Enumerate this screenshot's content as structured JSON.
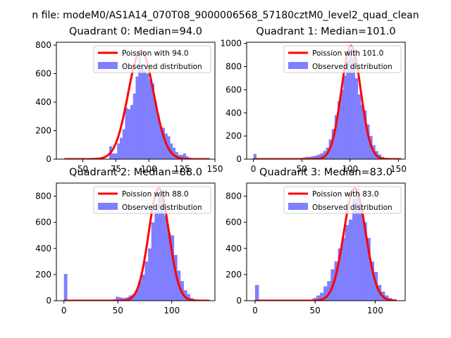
{
  "suptitle": "n file: modeM0/AS1A14_070T08_9000006568_57180cztM0_level2_quad_clean",
  "colors": {
    "hist": "#7f7fff",
    "fit": "#ff0000",
    "axis": "#000000"
  },
  "chart_data": [
    {
      "type": "histogram",
      "title": "Quadrant 0: Median=94.0",
      "xlim": [
        30,
        150
      ],
      "ylim": [
        0,
        820
      ],
      "xticks": [
        50,
        75,
        100,
        125,
        150
      ],
      "yticks": [
        0,
        200,
        400,
        600,
        800
      ],
      "legend": [
        "Poission with 94.0",
        "Observed distribution"
      ],
      "legend_location": "top-right",
      "bins": {
        "x": [
          36,
          38,
          40,
          42,
          44,
          46,
          48,
          50,
          52,
          54,
          56,
          58,
          60,
          62,
          64,
          66,
          68,
          70,
          72,
          74,
          76,
          78,
          80,
          82,
          84,
          86,
          88,
          90,
          92,
          94,
          96,
          98,
          100,
          102,
          104,
          106,
          108,
          110,
          112,
          114,
          116,
          118,
          120,
          122,
          124,
          126,
          128,
          130,
          132,
          134,
          136,
          138,
          140,
          142,
          144,
          146
        ],
        "y": [
          0,
          0,
          0,
          0,
          0,
          0,
          0,
          0,
          0,
          0,
          0,
          0,
          0,
          0,
          0,
          0,
          0,
          90,
          40,
          40,
          110,
          150,
          210,
          360,
          350,
          380,
          460,
          580,
          750,
          640,
          620,
          600,
          560,
          530,
          400,
          310,
          230,
          220,
          180,
          160,
          110,
          80,
          50,
          30,
          30,
          40,
          20,
          10,
          5,
          0,
          0,
          0,
          0,
          0,
          0,
          0
        ]
      },
      "fit": {
        "mean": 94.0,
        "amplitude": 760,
        "x_range": [
          36,
          146
        ]
      }
    },
    {
      "type": "histogram",
      "title": "Quadrant 1: Median=101.0",
      "xlim": [
        -7,
        157
      ],
      "ylim": [
        0,
        1010
      ],
      "xticks": [
        0,
        50,
        100,
        150
      ],
      "yticks": [
        0,
        200,
        400,
        600,
        800,
        1000
      ],
      "legend": [
        "Poission with 101.0",
        "Observed distribution"
      ],
      "legend_location": "top-right",
      "bins": {
        "x": [
          0,
          3,
          6,
          9,
          12,
          15,
          18,
          21,
          24,
          27,
          30,
          33,
          36,
          39,
          42,
          45,
          48,
          51,
          54,
          57,
          60,
          63,
          66,
          69,
          72,
          75,
          78,
          81,
          84,
          87,
          90,
          93,
          96,
          99,
          102,
          105,
          108,
          111,
          114,
          117,
          120,
          123,
          126,
          129,
          132,
          135,
          138,
          141,
          144,
          147,
          150
        ],
        "y": [
          45,
          0,
          0,
          0,
          0,
          0,
          0,
          0,
          0,
          0,
          0,
          0,
          0,
          0,
          0,
          5,
          10,
          15,
          20,
          20,
          25,
          30,
          40,
          50,
          70,
          100,
          170,
          260,
          380,
          500,
          600,
          720,
          850,
          950,
          880,
          700,
          560,
          470,
          420,
          300,
          200,
          120,
          70,
          40,
          20,
          10,
          5,
          0,
          0,
          0,
          0
        ]
      },
      "fit": {
        "mean": 101.0,
        "amplitude": 980,
        "x_range": [
          0,
          153
        ]
      }
    },
    {
      "type": "histogram",
      "title": "Quadrant 2: Median=88.0",
      "xlim": [
        -7,
        140
      ],
      "ylim": [
        0,
        900
      ],
      "xticks": [
        0,
        50,
        100
      ],
      "yticks": [
        0,
        200,
        400,
        600,
        800
      ],
      "legend": [
        "Poission with 88.0",
        "Observed distribution"
      ],
      "legend_location": "top-right",
      "bins": {
        "x": [
          0,
          3,
          6,
          9,
          12,
          15,
          18,
          21,
          24,
          27,
          30,
          33,
          36,
          39,
          42,
          45,
          48,
          51,
          54,
          57,
          60,
          63,
          66,
          69,
          72,
          75,
          78,
          81,
          84,
          87,
          90,
          93,
          96,
          99,
          102,
          105,
          108,
          111,
          114,
          117,
          120,
          123,
          126,
          129,
          132
        ],
        "y": [
          205,
          0,
          0,
          0,
          0,
          0,
          0,
          0,
          0,
          0,
          0,
          0,
          0,
          0,
          0,
          10,
          30,
          25,
          20,
          25,
          40,
          50,
          80,
          150,
          200,
          300,
          400,
          600,
          700,
          800,
          840,
          650,
          520,
          500,
          350,
          230,
          150,
          80,
          50,
          20,
          10,
          0,
          0,
          0,
          0
        ]
      },
      "fit": {
        "mean": 88.0,
        "amplitude": 860,
        "x_range": [
          0,
          135
        ]
      }
    },
    {
      "type": "histogram",
      "title": "Quadrant 3: Median=83.0",
      "xlim": [
        -7,
        125
      ],
      "ylim": [
        0,
        900
      ],
      "xticks": [
        0,
        50,
        100
      ],
      "yticks": [
        0,
        200,
        400,
        600,
        800
      ],
      "legend": [
        "Poission with 83.0",
        "Observed distribution"
      ],
      "legend_location": "top-right",
      "bins": {
        "x": [
          0,
          3,
          6,
          9,
          12,
          15,
          18,
          21,
          24,
          27,
          30,
          33,
          36,
          39,
          42,
          45,
          48,
          51,
          54,
          57,
          60,
          63,
          66,
          69,
          72,
          75,
          78,
          81,
          84,
          87,
          90,
          93,
          96,
          99,
          102,
          105,
          108,
          111,
          114,
          117
        ],
        "y": [
          120,
          0,
          0,
          0,
          0,
          0,
          0,
          0,
          0,
          0,
          0,
          0,
          0,
          0,
          0,
          5,
          20,
          40,
          60,
          110,
          150,
          240,
          300,
          400,
          480,
          580,
          620,
          780,
          860,
          720,
          600,
          480,
          300,
          220,
          120,
          70,
          40,
          20,
          10,
          0
        ]
      },
      "fit": {
        "mean": 83.0,
        "amplitude": 860,
        "x_range": [
          0,
          118
        ]
      }
    }
  ]
}
